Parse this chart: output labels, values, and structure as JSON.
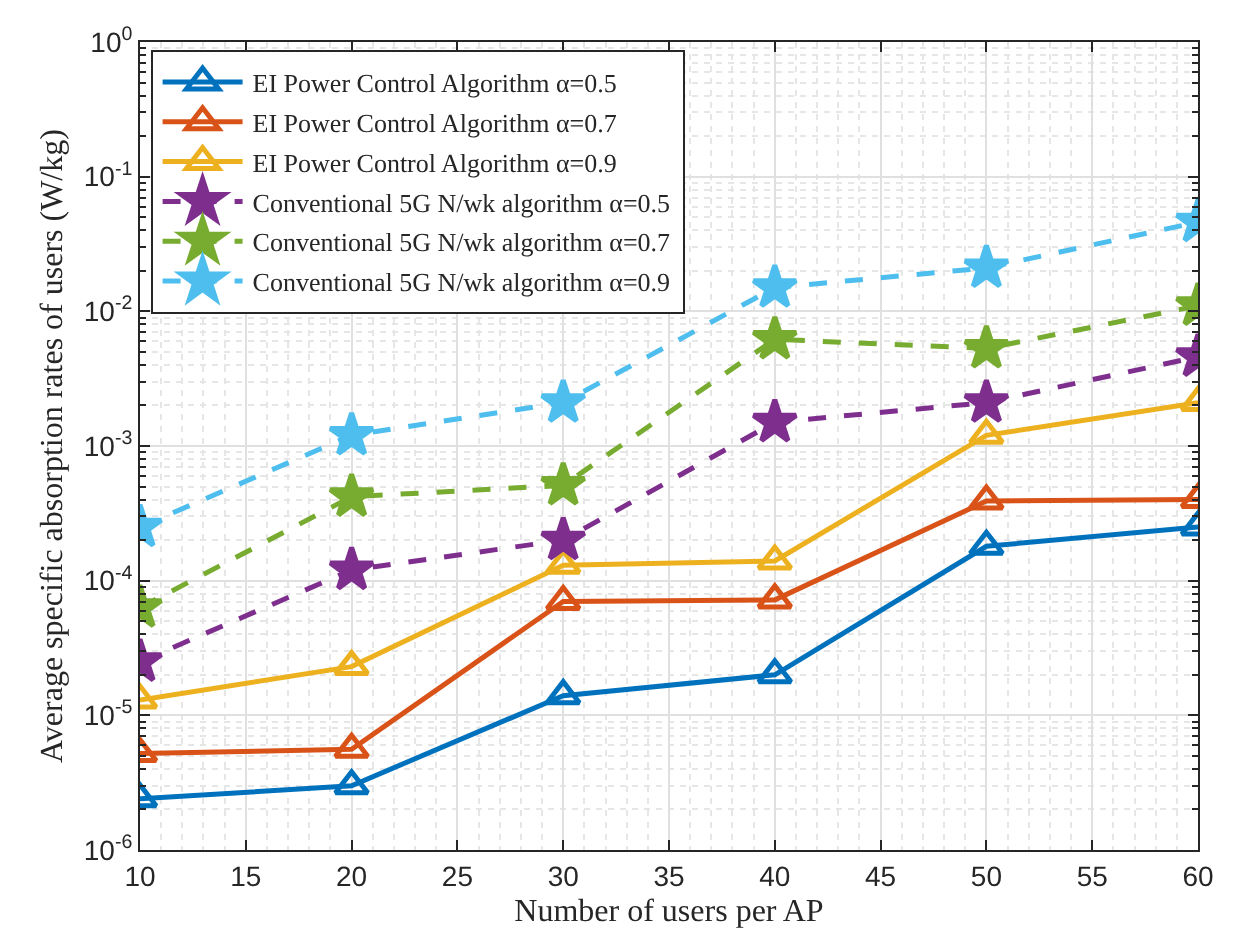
{
  "chart_data": {
    "type": "line",
    "xlabel": "Number of users per AP",
    "ylabel": "Average specific absorption rates of users (W/kg)",
    "x": [
      10,
      20,
      30,
      40,
      50,
      60
    ],
    "series": [
      {
        "name": "EI Power Control Algorithm α=0.5",
        "color": "#0072bd",
        "marker": "triangle",
        "line_style": "solid",
        "values": [
          2.4e-06,
          3e-06,
          1.4e-05,
          2e-05,
          0.00018,
          0.00025
        ]
      },
      {
        "name": "EI Power Control Algorithm α=0.7",
        "color": "#d95319",
        "marker": "triangle",
        "line_style": "solid",
        "values": [
          5.2e-06,
          5.6e-06,
          7e-05,
          7.2e-05,
          0.00039,
          0.0004
        ]
      },
      {
        "name": "EI Power Control Algorithm α=0.9",
        "color": "#edb120",
        "marker": "triangle",
        "line_style": "solid",
        "values": [
          1.3e-05,
          2.3e-05,
          0.00013,
          0.00014,
          0.0012,
          0.0021
        ]
      },
      {
        "name": "Conventional 5G N/wk algorithm α=0.5",
        "color": "#7e2f8e",
        "marker": "star",
        "line_style": "dashed",
        "values": [
          2.5e-05,
          0.00012,
          0.0002,
          0.0015,
          0.0021,
          0.0046
        ]
      },
      {
        "name": "Conventional 5G N/wk algorithm α=0.7",
        "color": "#77ac30",
        "marker": "star",
        "line_style": "dashed",
        "values": [
          6.3e-05,
          0.00042,
          0.00051,
          0.0062,
          0.0053,
          0.011
        ]
      },
      {
        "name": "Conventional 5G N/wk algorithm α=0.9",
        "color": "#4dbeee",
        "marker": "star",
        "line_style": "dashed",
        "values": [
          0.00025,
          0.0012,
          0.0021,
          0.015,
          0.021,
          0.046
        ]
      }
    ],
    "log": "y",
    "xlim": [
      10,
      60
    ],
    "xticks": [
      10,
      15,
      20,
      25,
      30,
      35,
      40,
      45,
      50,
      55,
      60
    ],
    "ylim": [
      1e-06,
      1
    ],
    "yticks": [
      {
        "value": 1e-06,
        "label": "10$^{-6}$"
      },
      {
        "value": 1e-05,
        "label": "10$^{-5}$"
      },
      {
        "value": 0.0001,
        "label": "10$^{-4}$"
      },
      {
        "value": 0.001,
        "label": "10$^{-3}$"
      },
      {
        "value": 0.01,
        "label": "10$^{-2}$"
      },
      {
        "value": 0.1,
        "label": "10$^{-1}$"
      },
      {
        "value": 1,
        "label": "10$^{0}$"
      }
    ],
    "grid": true,
    "legend": "top left"
  }
}
